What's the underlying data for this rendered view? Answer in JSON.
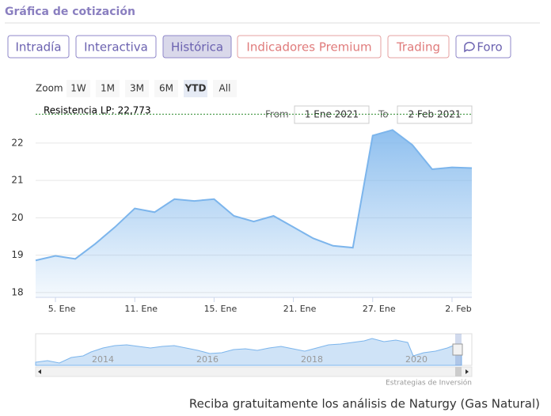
{
  "header": {
    "title": "Gráfica de cotización"
  },
  "tabs": {
    "items": [
      "Intradía",
      "Interactiva",
      "Histórica",
      "Indicadores Premium",
      "Trading",
      "Foro"
    ],
    "active": 2
  },
  "zoom": {
    "label": "Zoom",
    "buttons": [
      "1W",
      "1M",
      "3M",
      "6M",
      "YTD",
      "All"
    ],
    "active": 4
  },
  "range": {
    "from_label": "From",
    "from": "1 Ene 2021",
    "to_label": "To",
    "to": "2 Feb 2021"
  },
  "chart_data": {
    "type": "area",
    "categories": [
      null,
      "5. Ene",
      null,
      null,
      null,
      "11. Ene",
      null,
      null,
      null,
      "15. Ene",
      null,
      null,
      null,
      "21. Ene",
      null,
      null,
      null,
      "27. Ene",
      null,
      null,
      null,
      "2. Feb",
      null
    ],
    "values": [
      18.86,
      18.98,
      18.9,
      19.3,
      19.75,
      20.25,
      20.15,
      20.5,
      20.45,
      20.5,
      20.05,
      19.9,
      20.05,
      19.75,
      19.45,
      19.25,
      19.2,
      22.2,
      22.35,
      21.95,
      21.3,
      21.35,
      21.33
    ],
    "color": "#7cb5ec",
    "ylim": [
      17.87,
      22.95
    ],
    "yticks": [
      18,
      19,
      20,
      21,
      22
    ],
    "grid": true,
    "resistance": {
      "label": "Resistencia LP: 22,773",
      "value": 22.773,
      "color": "#2e8b2e"
    }
  },
  "navigator": {
    "years": [
      "2014",
      "2016",
      "2018",
      "2020"
    ]
  },
  "credits": "Estrategias de Inversión",
  "footer": "Reciba gratuitamente los análisis de Naturgy (Gas Natural)"
}
